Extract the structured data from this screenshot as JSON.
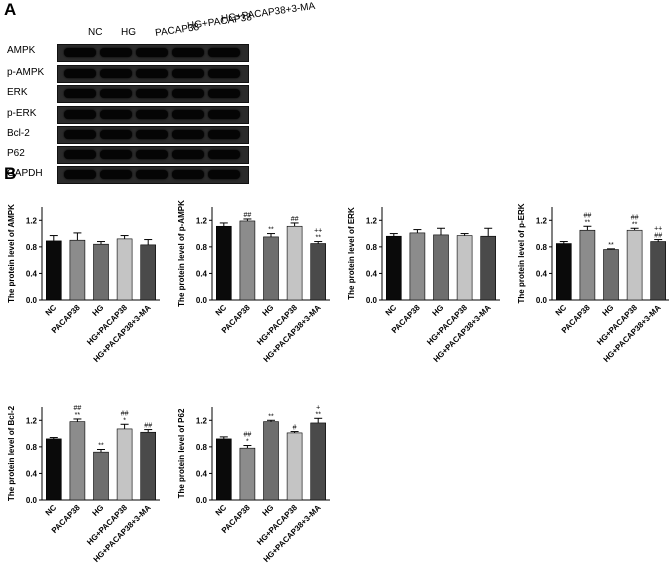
{
  "panel_labels": {
    "a": "A",
    "b": "B"
  },
  "blot": {
    "lanes": [
      "NC",
      "HG",
      "PACAP38",
      "HG+PACAP38",
      "HG+PACAP38+3-MA"
    ],
    "proteins": [
      "AMPK",
      "p-AMPK",
      "ERK",
      "p-ERK",
      "Bcl-2",
      "P62",
      "GAPDH"
    ]
  },
  "chart_data": [
    {
      "type": "bar",
      "title": "",
      "ylabel": "The protein level of AMPK",
      "ylim": [
        0,
        1.4
      ],
      "yticks": [
        "0.0",
        "0.4",
        "0.8",
        "1.2"
      ],
      "categories": [
        "NC",
        "PACAP38",
        "HG",
        "HG+PACAP38",
        "HG+PACAP38+3-MA"
      ],
      "values": [
        0.89,
        0.9,
        0.84,
        0.92,
        0.83
      ],
      "errors": [
        0.08,
        0.11,
        0.04,
        0.05,
        0.08
      ],
      "annotations": [
        [],
        [],
        [],
        [],
        []
      ],
      "colors": [
        "#0a0a0a",
        "#8c8c8c",
        "#6e6e6e",
        "#c4c4c4",
        "#4a4a4a"
      ]
    },
    {
      "type": "bar",
      "title": "",
      "ylabel": "The protein level of p-AMPK",
      "ylim": [
        0,
        1.4
      ],
      "yticks": [
        "0.0",
        "0.4",
        "0.8",
        "1.2"
      ],
      "categories": [
        "NC",
        "PACAP38",
        "HG",
        "HG+PACAP38",
        "HG+PACAP38+3-MA"
      ],
      "values": [
        1.11,
        1.19,
        0.95,
        1.11,
        0.85
      ],
      "errors": [
        0.05,
        0.03,
        0.05,
        0.05,
        0.03
      ],
      "annotations": [
        [],
        [
          "##"
        ],
        [
          "**"
        ],
        [
          "##"
        ],
        [
          "++",
          "**"
        ]
      ],
      "colors": [
        "#0a0a0a",
        "#8c8c8c",
        "#6e6e6e",
        "#c4c4c4",
        "#4a4a4a"
      ]
    },
    {
      "type": "bar",
      "title": "",
      "ylabel": "The protein level of ERK",
      "ylim": [
        0,
        1.4
      ],
      "yticks": [
        "0.0",
        "0.4",
        "0.8",
        "1.2"
      ],
      "categories": [
        "NC",
        "PACAP38",
        "HG",
        "HG+PACAP38",
        "HG+PACAP38+3-MA"
      ],
      "values": [
        0.96,
        1.01,
        0.98,
        0.97,
        0.96
      ],
      "errors": [
        0.04,
        0.05,
        0.1,
        0.03,
        0.12
      ],
      "annotations": [
        [],
        [],
        [],
        [],
        []
      ],
      "colors": [
        "#0a0a0a",
        "#8c8c8c",
        "#6e6e6e",
        "#c4c4c4",
        "#4a4a4a"
      ]
    },
    {
      "type": "bar",
      "title": "",
      "ylabel": "The protein level of p-ERK",
      "ylim": [
        0,
        1.4
      ],
      "yticks": [
        "0.0",
        "0.4",
        "0.8",
        "1.2"
      ],
      "categories": [
        "NC",
        "PACAP38",
        "HG",
        "HG+PACAP38",
        "HG+PACAP38+3-MA"
      ],
      "values": [
        0.85,
        1.05,
        0.76,
        1.05,
        0.88
      ],
      "errors": [
        0.03,
        0.06,
        0.01,
        0.03,
        0.03
      ],
      "annotations": [
        [],
        [
          "##",
          "**"
        ],
        [
          "**"
        ],
        [
          "##",
          "**"
        ],
        [
          "++",
          "##"
        ]
      ],
      "colors": [
        "#0a0a0a",
        "#8c8c8c",
        "#6e6e6e",
        "#c4c4c4",
        "#4a4a4a"
      ]
    },
    {
      "type": "bar",
      "title": "",
      "ylabel": "The protein level of Bcl-2",
      "ylim": [
        0,
        1.4
      ],
      "yticks": [
        "0.0",
        "0.4",
        "0.8",
        "1.2"
      ],
      "categories": [
        "NC",
        "PACAP38",
        "HG",
        "HG+PACAP38",
        "HG+PACAP38+3-MA"
      ],
      "values": [
        0.92,
        1.18,
        0.72,
        1.07,
        1.02
      ],
      "errors": [
        0.02,
        0.04,
        0.04,
        0.07,
        0.04
      ],
      "annotations": [
        [],
        [
          "##",
          "**"
        ],
        [
          "**"
        ],
        [
          "##",
          "*"
        ],
        [
          "##"
        ]
      ],
      "colors": [
        "#0a0a0a",
        "#8c8c8c",
        "#6e6e6e",
        "#c4c4c4",
        "#4a4a4a"
      ]
    },
    {
      "type": "bar",
      "title": "",
      "ylabel": "The protein level of P62",
      "ylim": [
        0,
        1.4
      ],
      "yticks": [
        "0.0",
        "0.4",
        "0.8",
        "1.2"
      ],
      "categories": [
        "NC",
        "PACAP38",
        "HG",
        "HG+PACAP38",
        "HG+PACAP38+3-MA"
      ],
      "values": [
        0.92,
        0.78,
        1.18,
        1.01,
        1.16
      ],
      "errors": [
        0.03,
        0.04,
        0.02,
        0.02,
        0.07
      ],
      "annotations": [
        [],
        [
          "##",
          "*"
        ],
        [
          "**"
        ],
        [
          "#"
        ],
        [
          "+",
          "**"
        ]
      ],
      "colors": [
        "#0a0a0a",
        "#8c8c8c",
        "#6e6e6e",
        "#c4c4c4",
        "#4a4a4a"
      ]
    }
  ]
}
